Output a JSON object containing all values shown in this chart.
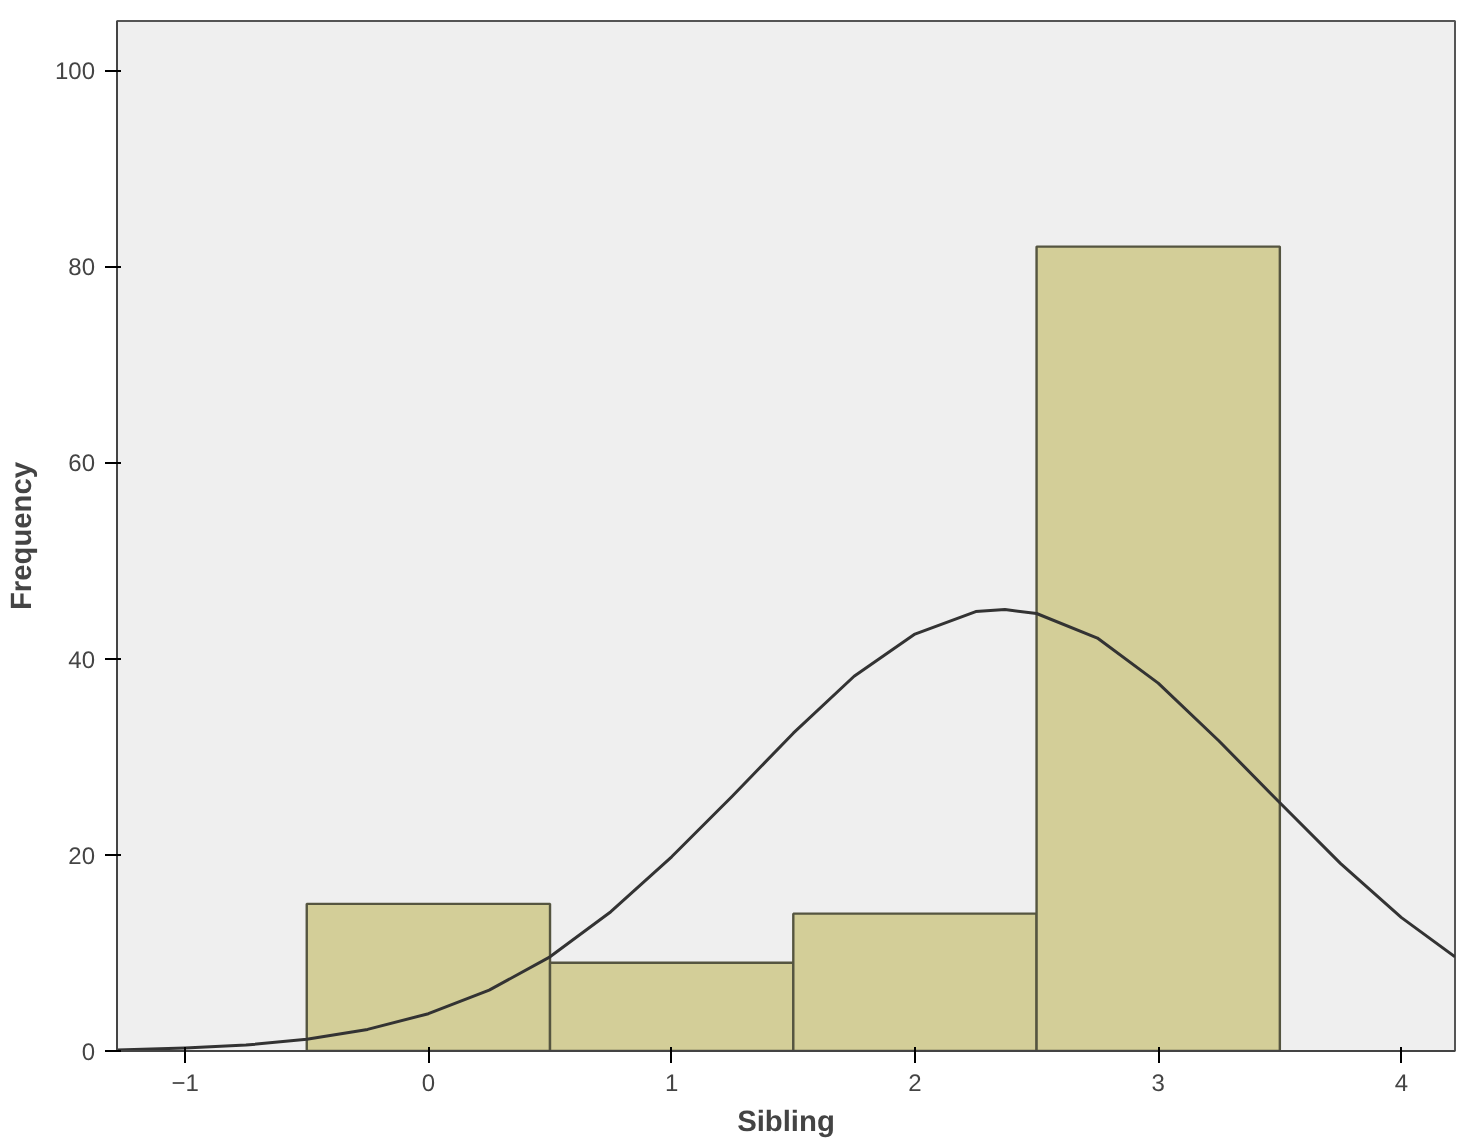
{
  "chart_data": {
    "type": "histogram",
    "xlabel": "Sibling",
    "ylabel": "Frequency",
    "bins": [
      -0.5,
      0.5,
      1.5,
      2.5,
      3.5
    ],
    "values": [
      15,
      9,
      14,
      82
    ],
    "color": "#d3ce98",
    "series": [
      {
        "type": "line",
        "color": "#333333",
        "x": [
          -1.28,
          -1,
          -0.75,
          -0.5,
          -0.25,
          0,
          0.25,
          0.5,
          0.75,
          1,
          1.25,
          1.5,
          1.75,
          2,
          2.25,
          2.37,
          2.5,
          2.75,
          3,
          3.25,
          3.5,
          3.75,
          4,
          4.22
        ],
        "values": [
          0.1,
          0.3,
          0.6,
          1.2,
          2.2,
          3.8,
          6.2,
          9.6,
          14.2,
          19.8,
          26,
          32.4,
          38.2,
          42.5,
          44.8,
          45,
          44.6,
          42.1,
          37.5,
          31.6,
          25.3,
          19.1,
          13.6,
          9.6
        ]
      }
    ],
    "xlim": [
      -1.28,
      4.22
    ],
    "ylim": [
      0,
      105
    ],
    "xticks": [
      -1,
      0,
      1,
      2,
      3,
      4
    ],
    "yticks": [
      0,
      20,
      40,
      60,
      80,
      100
    ],
    "grid": false
  }
}
